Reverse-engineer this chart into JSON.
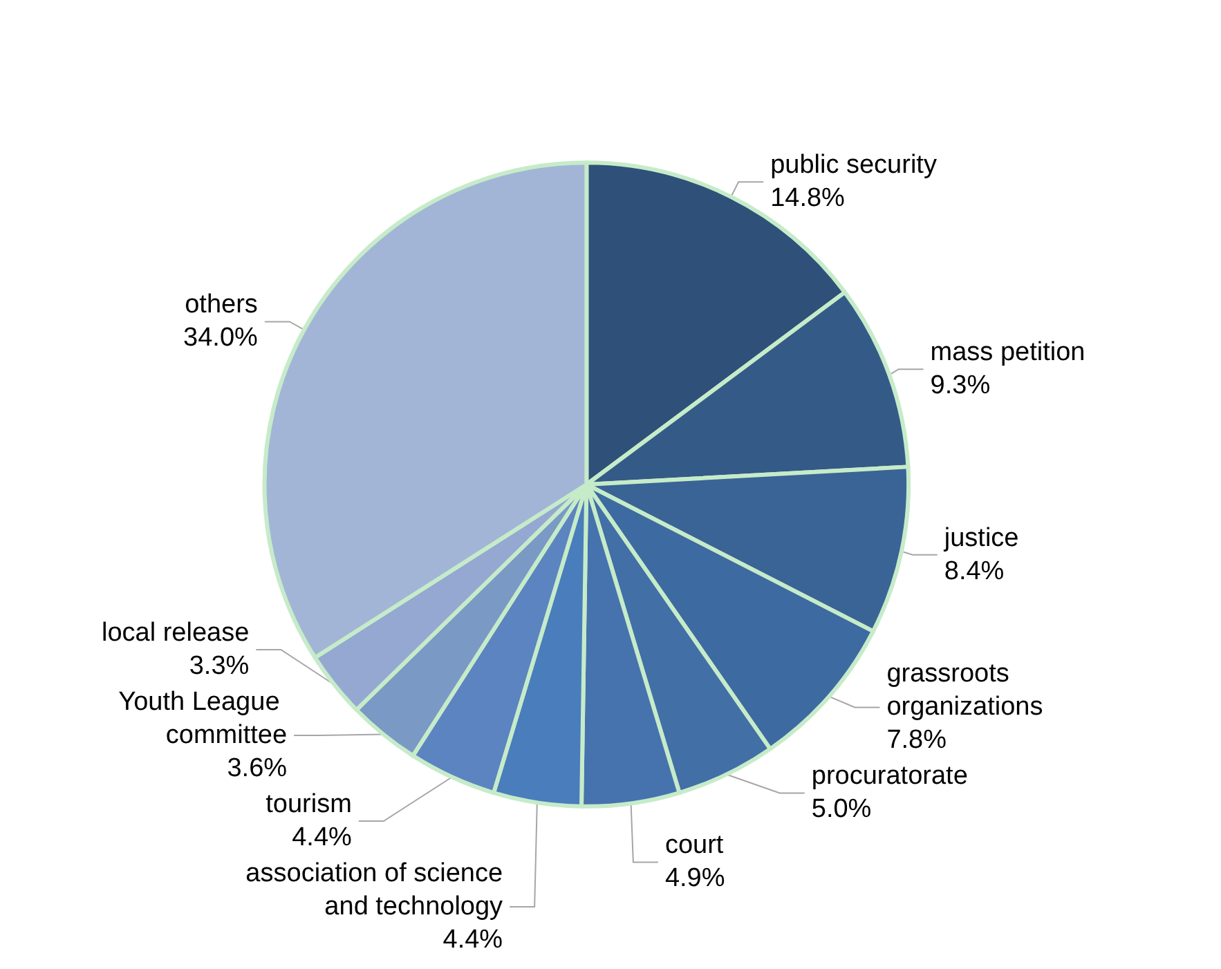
{
  "chart_data": {
    "type": "pie",
    "categories": [
      "public security",
      "mass petition",
      "justice",
      "grassroots organizations",
      "procuratorate",
      "court",
      "association of science and technology",
      "tourism",
      "Youth League committee",
      "local release",
      "others"
    ],
    "values": [
      14.8,
      9.3,
      8.4,
      7.8,
      5.0,
      4.9,
      4.4,
      4.4,
      3.6,
      3.3,
      34.0
    ],
    "colors": [
      "#2f5079",
      "#345a88",
      "#3a6496",
      "#3d6aa0",
      "#416fa6",
      "#4673ad",
      "#4a7dbb",
      "#5b84c0",
      "#7a99c4",
      "#95a8d2",
      "#a3b5d6"
    ],
    "value_labels": [
      "14.8%",
      "9.3%",
      "8.4%",
      "7.8%",
      "5.0%",
      "4.9%",
      "4.4%",
      "4.4%",
      "3.6%",
      "3.3%",
      "34.0%"
    ],
    "legend": false
  }
}
